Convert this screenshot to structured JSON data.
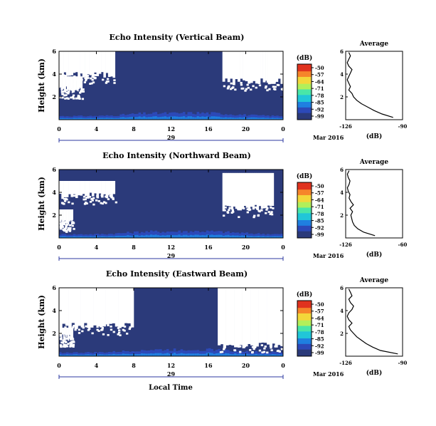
{
  "figure": {
    "xlabel": "Local Time",
    "cbar_title": "(dB)",
    "cbar_ticks": [
      "-50",
      "-57",
      "-64",
      "-71",
      "-78",
      "-85",
      "-92",
      "-99"
    ],
    "date_day": "29",
    "date_tail": "Mar 2016",
    "avg_title": "Average",
    "avg_xlabel": "(dB)"
  },
  "colors": {
    "background_echo": "#2b3a7a",
    "no_data": "#ffffff",
    "colormap": [
      "#2b3a7a",
      "#2c49b8",
      "#1f7fe0",
      "#21c6d8",
      "#49e6a8",
      "#b2ef5a",
      "#f3d73a",
      "#f6852a",
      "#e0331f"
    ]
  },
  "chart_data": [
    {
      "type": "heatmap",
      "title": "Echo Intensity (Vertical Beam)",
      "ylabel": "Height (km)",
      "xlim": [
        0,
        24
      ],
      "ylim": [
        0,
        6
      ],
      "xticks": [
        "0",
        "4",
        "8",
        "12",
        "16",
        "20",
        "0"
      ],
      "yticks": [
        "2",
        "4",
        "6"
      ],
      "clim": [
        -99,
        -50
      ],
      "description_levels": {
        "dominant_db": -96,
        "near_surface_db": -88
      },
      "no_data_regions": [
        {
          "hours": [
            0,
            6
          ],
          "height_km": [
            3.8,
            6.0
          ]
        },
        {
          "hours": [
            17.5,
            24
          ],
          "height_km": [
            3.2,
            6.0
          ]
        },
        {
          "hours": [
            0,
            2.5
          ],
          "height_km": [
            2.5,
            3.8
          ]
        }
      ],
      "average_profile": {
        "xlim": [
          -126,
          -90
        ],
        "xticks": [
          "-126",
          "-90"
        ],
        "yticks": [
          "2",
          "4",
          "6"
        ],
        "height_km": [
          0.2,
          0.5,
          0.8,
          1.1,
          1.4,
          1.7,
          2.0,
          2.3,
          2.6,
          2.9,
          3.2,
          3.5,
          3.8,
          4.1,
          4.4,
          4.7,
          5.0,
          5.3,
          5.6,
          5.9
        ],
        "db": [
          -96,
          -103,
          -108,
          -112,
          -116,
          -119,
          -121,
          -122,
          -124,
          -123,
          -124,
          -125,
          -124,
          -123,
          -122,
          -124,
          -125,
          -124,
          -123,
          -124
        ]
      }
    },
    {
      "type": "heatmap",
      "title": "Echo Intensity (Northward Beam)",
      "ylabel": "Height (km)",
      "xlim": [
        0,
        24
      ],
      "ylim": [
        0,
        6
      ],
      "xticks": [
        "0",
        "4",
        "8",
        "12",
        "16",
        "20",
        "0"
      ],
      "yticks": [
        "2",
        "4",
        "6"
      ],
      "clim": [
        -99,
        -50
      ],
      "description_levels": {
        "dominant_db": -96,
        "near_surface_db": -88
      },
      "no_data_regions": [
        {
          "hours": [
            0,
            6
          ],
          "height_km": [
            3.6,
            5.0
          ]
        },
        {
          "hours": [
            17.5,
            23
          ],
          "height_km": [
            2.5,
            5.7
          ]
        },
        {
          "hours": [
            0,
            1.5
          ],
          "height_km": [
            1.2,
            2.5
          ]
        }
      ],
      "average_profile": {
        "xlim": [
          -126,
          -60
        ],
        "xticks": [
          "-126",
          "-60"
        ],
        "yticks": [
          "2",
          "4",
          "6"
        ],
        "height_km": [
          0.2,
          0.5,
          0.8,
          1.1,
          1.4,
          1.7,
          2.0,
          2.3,
          2.6,
          2.9,
          3.2,
          3.5,
          3.8,
          4.1,
          4.4,
          4.7,
          5.0,
          5.3,
          5.6,
          5.9
        ],
        "db": [
          -92,
          -105,
          -112,
          -116,
          -118,
          -119,
          -120,
          -118,
          -121,
          -117,
          -120,
          -122,
          -121,
          -123,
          -124,
          -122,
          -121,
          -123,
          -124,
          -122
        ]
      }
    },
    {
      "type": "heatmap",
      "title": "Echo Intensity (Eastward Beam)",
      "ylabel": "Height (km)",
      "xlim": [
        0,
        24
      ],
      "ylim": [
        0,
        6
      ],
      "xticks": [
        "0",
        "4",
        "8",
        "12",
        "16",
        "20",
        "0"
      ],
      "yticks": [
        "2",
        "4",
        "6"
      ],
      "clim": [
        -99,
        -50
      ],
      "description_levels": {
        "dominant_db": -96,
        "near_surface_db": -88
      },
      "no_data_regions": [
        {
          "hours": [
            0,
            8
          ],
          "height_km": [
            2.5,
            6.0
          ]
        },
        {
          "hours": [
            17,
            24
          ],
          "height_km": [
            0.8,
            6.0
          ]
        },
        {
          "hours": [
            0,
            1.5
          ],
          "height_km": [
            1.5,
            2.5
          ]
        }
      ],
      "average_profile": {
        "xlim": [
          -126,
          -90
        ],
        "xticks": [
          "-126",
          "-90"
        ],
        "yticks": [
          "2",
          "4",
          "6"
        ],
        "height_km": [
          0.2,
          0.5,
          0.8,
          1.1,
          1.4,
          1.7,
          2.0,
          2.3,
          2.6,
          2.9,
          3.2,
          3.5,
          3.8,
          4.1,
          4.4,
          4.7,
          5.0,
          5.3,
          5.6,
          5.9
        ],
        "db": [
          -93,
          -104,
          -109,
          -113,
          -116,
          -119,
          -121,
          -123,
          -124,
          -122,
          -124,
          -125,
          -124,
          -122,
          -121,
          -123,
          -124,
          -122,
          -123,
          -124
        ]
      }
    }
  ]
}
